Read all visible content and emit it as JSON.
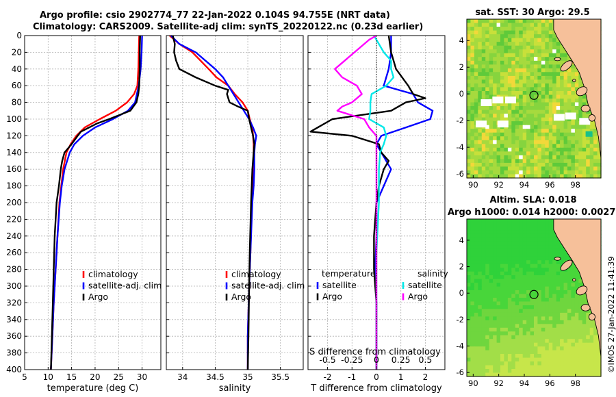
{
  "header": {
    "title_line1": "Argo profile: csio 2902774_77 22-Jan-2022 0.104S 94.755E (NRT data)",
    "title_line2": "Climatology: CARS2009. Satellite-adj clim: synTS_20220122.nc (0.23d earlier)"
  },
  "chart_data": [
    {
      "type": "line",
      "panel": "temperature",
      "xlabel": "temperature (deg C)",
      "xlim": [
        5,
        34
      ],
      "xticks": [
        5,
        10,
        15,
        20,
        25,
        30
      ],
      "ylim": [
        400,
        0
      ],
      "yticks": [
        0,
        20,
        40,
        60,
        80,
        100,
        120,
        140,
        160,
        180,
        200,
        220,
        240,
        260,
        280,
        300,
        320,
        340,
        360,
        380,
        400
      ],
      "legend": [
        "climatology",
        "satellite-adj. clim",
        "Argo"
      ],
      "series": [
        {
          "name": "climatology",
          "color": "#ff0000",
          "depth": [
            0,
            20,
            40,
            60,
            70,
            80,
            90,
            100,
            110,
            120,
            130,
            140,
            160,
            180,
            200,
            240,
            280,
            320,
            360,
            400
          ],
          "values": [
            29.4,
            29.3,
            29.2,
            29.0,
            28.3,
            26.8,
            24.4,
            21.0,
            17.8,
            16.0,
            14.8,
            13.9,
            13.2,
            12.8,
            12.4,
            12.0,
            11.6,
            11.2,
            10.9,
            10.6
          ]
        },
        {
          "name": "satellite-adj. clim",
          "color": "#0000ff",
          "depth": [
            0,
            20,
            40,
            60,
            80,
            90,
            100,
            110,
            120,
            130,
            140,
            160,
            180,
            200,
            240,
            280,
            320,
            360,
            400
          ],
          "values": [
            30.0,
            29.9,
            29.7,
            29.3,
            28.5,
            27.0,
            23.8,
            20.0,
            17.4,
            15.6,
            14.6,
            13.5,
            12.9,
            12.5,
            12.0,
            11.6,
            11.2,
            10.9,
            10.6
          ]
        },
        {
          "name": "Argo",
          "color": "#000000",
          "depth": [
            0,
            20,
            40,
            60,
            70,
            80,
            90,
            100,
            105,
            115,
            120,
            130,
            140,
            150,
            160,
            180,
            200,
            220,
            240,
            280,
            320,
            360,
            400
          ],
          "values": [
            29.6,
            29.5,
            29.5,
            29.4,
            29.2,
            28.8,
            27.5,
            23.0,
            20.5,
            17.0,
            16.3,
            15.0,
            13.5,
            13.0,
            12.7,
            12.3,
            11.8,
            11.6,
            11.4,
            11.2,
            11.0,
            10.8,
            10.6
          ]
        }
      ]
    },
    {
      "type": "line",
      "panel": "salinity",
      "xlabel": "salinity",
      "xlim": [
        33.75,
        35.85
      ],
      "xticks": [
        34,
        34.5,
        35,
        35.5
      ],
      "ylim": [
        400,
        0
      ],
      "legend": [
        "climatology",
        "satellite-adj. clim",
        "Argo"
      ],
      "series": [
        {
          "name": "climatology",
          "color": "#ff0000",
          "depth": [
            0,
            10,
            20,
            40,
            50,
            60,
            70,
            80,
            90,
            100,
            110,
            120,
            130,
            140,
            160,
            200,
            260,
            300,
            360,
            400
          ],
          "values": [
            33.8,
            33.95,
            34.15,
            34.4,
            34.52,
            34.7,
            34.8,
            34.92,
            35.0,
            35.03,
            35.07,
            35.08,
            35.09,
            35.09,
            35.08,
            35.06,
            35.04,
            35.02,
            35.0,
            35.0
          ]
        },
        {
          "name": "satellite-adj. clim",
          "color": "#0000ff",
          "depth": [
            0,
            10,
            20,
            40,
            50,
            60,
            70,
            80,
            90,
            100,
            110,
            120,
            125,
            130,
            140,
            160,
            180,
            200,
            260,
            300,
            360,
            400
          ],
          "values": [
            33.82,
            33.95,
            34.2,
            34.5,
            34.62,
            34.7,
            34.78,
            34.86,
            34.94,
            35.02,
            35.08,
            35.13,
            35.12,
            35.11,
            35.1,
            35.1,
            35.09,
            35.07,
            35.04,
            35.02,
            35.0,
            35.0
          ]
        },
        {
          "name": "Argo",
          "color": "#000000",
          "depth": [
            0,
            10,
            20,
            30,
            40,
            50,
            60,
            65,
            70,
            80,
            85,
            90,
            100,
            110,
            120,
            130,
            140,
            160,
            200,
            260,
            300,
            360,
            400
          ],
          "values": [
            33.85,
            33.88,
            33.87,
            33.9,
            33.95,
            34.2,
            34.5,
            34.7,
            34.68,
            34.72,
            34.85,
            35.0,
            35.02,
            35.05,
            35.08,
            35.1,
            35.09,
            35.07,
            35.05,
            35.03,
            35.02,
            35.01,
            35.0
          ]
        }
      ]
    },
    {
      "type": "line",
      "panel": "differences",
      "xlabel": "T difference from climatology",
      "xlim": [
        -2.8,
        2.8
      ],
      "xticks": [
        -2,
        -1,
        0,
        1,
        2
      ],
      "secondary_label": "S difference from climatology",
      "secondary_ticks": [
        "-0.5",
        "-0.25",
        "0",
        "0.25",
        "0.5"
      ],
      "secondary_tick_values": [
        -2,
        -1,
        0,
        1,
        2
      ],
      "ylim": [
        400,
        0
      ],
      "legend_temperature": {
        "heading": "temperature",
        "items": [
          "satellite",
          "Argo"
        ]
      },
      "legend_salinity": {
        "heading": "salinity",
        "items": [
          "satellite",
          "Argo"
        ]
      },
      "series": [
        {
          "name": "T satellite",
          "color": "#0000ff",
          "depth": [
            0,
            20,
            40,
            60,
            70,
            80,
            90,
            100,
            110,
            120,
            130,
            140,
            160,
            180,
            200,
            240,
            280,
            320,
            360,
            400
          ],
          "values": [
            0.6,
            0.6,
            0.5,
            0.3,
            1.5,
            1.7,
            2.3,
            2.2,
            1.2,
            0.2,
            0.0,
            0.2,
            0.6,
            0.3,
            0.0,
            0.0,
            -0.05,
            0.0,
            0.0,
            0.0
          ]
        },
        {
          "name": "T Argo",
          "color": "#000000",
          "depth": [
            0,
            20,
            40,
            60,
            70,
            75,
            80,
            90,
            100,
            110,
            115,
            120,
            130,
            140,
            150,
            160,
            180,
            200,
            240,
            280,
            320,
            360,
            400
          ],
          "values": [
            0.5,
            0.6,
            0.8,
            1.3,
            1.5,
            2.0,
            1.2,
            0.6,
            -1.8,
            -2.4,
            -2.7,
            -1.0,
            0.1,
            0.2,
            0.5,
            0.3,
            0.1,
            0.0,
            -0.1,
            -0.1,
            0.0,
            0.0,
            0.0
          ]
        },
        {
          "name": "S satellite",
          "color": "#00e8e8",
          "depth": [
            0,
            20,
            30,
            40,
            50,
            60,
            70,
            80,
            90,
            100,
            110,
            120,
            130,
            140,
            160,
            200,
            260,
            300,
            360,
            400
          ],
          "values": [
            -0.1,
            0.3,
            0.6,
            0.6,
            0.7,
            0.4,
            -0.2,
            -0.25,
            -0.25,
            -0.3,
            0.3,
            0.4,
            0.3,
            0.15,
            0.1,
            0.1,
            0.0,
            0.0,
            0.0,
            0.0
          ]
        },
        {
          "name": "S Argo",
          "color": "#ff00ff",
          "depth": [
            0,
            5,
            20,
            40,
            50,
            60,
            70,
            80,
            85,
            90,
            100,
            110,
            120,
            130,
            140,
            160,
            200,
            260,
            300,
            360,
            400
          ],
          "values": [
            0.0,
            -0.3,
            -0.9,
            -1.7,
            -1.4,
            -0.8,
            -0.6,
            -1.0,
            -1.4,
            -1.6,
            -0.5,
            -0.3,
            0.0,
            0.0,
            0.0,
            0.0,
            0.0,
            0.0,
            0.0,
            0.0,
            0.0
          ]
        }
      ]
    },
    {
      "type": "heatmap",
      "panel": "sst_map",
      "title": "sat. SST: 30 Argo: 29.5",
      "xticks": [
        90,
        92,
        94,
        96,
        98
      ],
      "yticks": [
        4,
        2,
        0,
        -2,
        -4,
        -6
      ],
      "marker": {
        "lon": 94.755,
        "lat": -0.104
      }
    },
    {
      "type": "heatmap",
      "panel": "sla_map",
      "title_line1": "Altim. SLA: 0.018",
      "title_line2": "Argo h1000: 0.014 h2000: 0.0027",
      "xticks": [
        90,
        92,
        94,
        96,
        98
      ],
      "yticks": [
        4,
        2,
        0,
        -2,
        -4,
        -6
      ],
      "marker": {
        "lon": 94.755,
        "lat": -0.104
      }
    }
  ],
  "colors": {
    "land": "#f6c09a",
    "sst_base": "#8ed64a",
    "sla_base": "#3bd63b"
  },
  "footer": {
    "stamp": "©IMOS 27-Jan-2022 11:41:39"
  }
}
